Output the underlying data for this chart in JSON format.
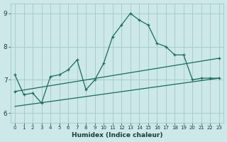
{
  "title": "",
  "xlabel": "Humidex (Indice chaleur)",
  "bg_color": "#cce8e8",
  "grid_color": "#aacccc",
  "line_color": "#1a6b5a",
  "xlim": [
    -0.5,
    23.5
  ],
  "ylim": [
    5.7,
    9.3
  ],
  "xticks": [
    0,
    1,
    2,
    3,
    4,
    5,
    6,
    7,
    8,
    9,
    10,
    11,
    12,
    13,
    14,
    15,
    16,
    17,
    18,
    19,
    20,
    21,
    22,
    23
  ],
  "yticks": [
    6,
    7,
    8,
    9
  ],
  "line1_x": [
    0,
    1,
    2,
    3,
    4,
    5,
    6,
    7,
    8,
    9,
    10,
    11,
    12,
    13,
    14,
    15,
    16,
    17,
    18,
    19,
    20,
    21,
    22,
    23
  ],
  "line1_y": [
    7.15,
    6.55,
    6.6,
    6.3,
    7.1,
    7.15,
    7.3,
    7.6,
    6.7,
    7.0,
    7.5,
    8.3,
    8.65,
    9.0,
    8.8,
    8.65,
    8.1,
    8.0,
    7.75,
    7.75,
    7.0,
    7.05,
    7.05,
    7.05
  ],
  "line2_x": [
    0,
    23
  ],
  "line2_y": [
    6.65,
    7.65
  ],
  "line3_x": [
    0,
    23
  ],
  "line3_y": [
    6.2,
    7.05
  ]
}
